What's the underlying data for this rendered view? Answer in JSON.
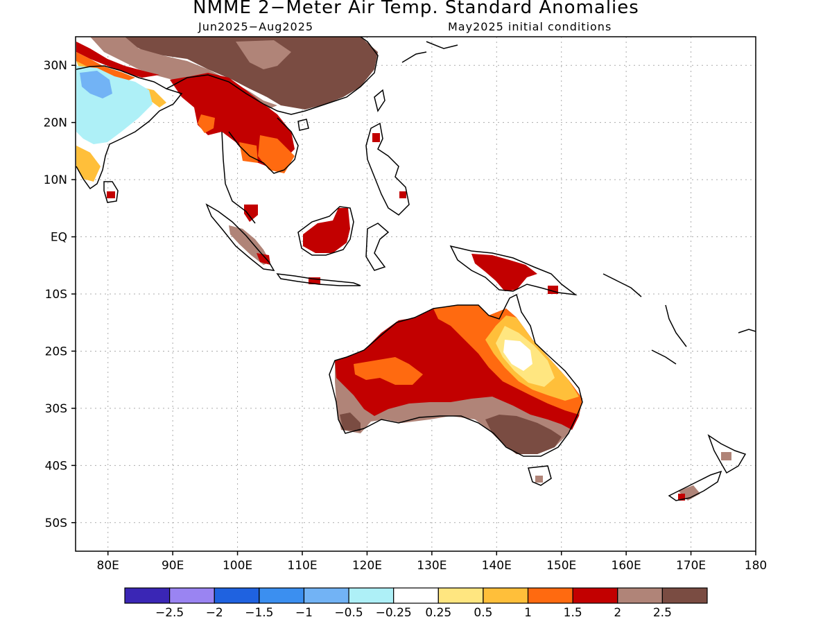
{
  "title": "NMME 2−Meter Air Temp. Standard Anomalies",
  "subtitle_left": "Jun2025−Aug2025",
  "subtitle_right": "May2025 initial conditions",
  "map": {
    "lon_range": [
      75,
      180
    ],
    "lat_range": [
      -55,
      35
    ],
    "lat_labels": [
      {
        "lat": 30,
        "text": "30N"
      },
      {
        "lat": 20,
        "text": "20N"
      },
      {
        "lat": 10,
        "text": "10N"
      },
      {
        "lat": 0,
        "text": "EQ"
      },
      {
        "lat": -10,
        "text": "10S"
      },
      {
        "lat": -20,
        "text": "20S"
      },
      {
        "lat": -30,
        "text": "30S"
      },
      {
        "lat": -40,
        "text": "40S"
      },
      {
        "lat": -50,
        "text": "50S"
      }
    ],
    "lon_labels": [
      {
        "lon": 80,
        "text": "80E"
      },
      {
        "lon": 90,
        "text": "90E"
      },
      {
        "lon": 100,
        "text": "100E"
      },
      {
        "lon": 110,
        "text": "110E"
      },
      {
        "lon": 120,
        "text": "120E"
      },
      {
        "lon": 130,
        "text": "130E"
      },
      {
        "lon": 140,
        "text": "140E"
      },
      {
        "lon": 150,
        "text": "150E"
      },
      {
        "lon": 160,
        "text": "160E"
      },
      {
        "lon": 170,
        "text": "170E"
      },
      {
        "lon": 180,
        "text": "180"
      }
    ],
    "grid": "dotted"
  },
  "colorbar": {
    "colors": [
      "#3a26b5",
      "#9a84f2",
      "#1f62e0",
      "#3b8ff0",
      "#72b3f5",
      "#aef0f7",
      "#ffffff",
      "#ffe680",
      "#ffbf3a",
      "#ff6a10",
      "#c20000",
      "#b08478",
      "#7a4c42"
    ],
    "labels": [
      "−2.5",
      "−2",
      "−1.5",
      "−1",
      "−0.5",
      "−0.25",
      "0.25",
      "0.5",
      "1",
      "1.5",
      "2",
      "2.5"
    ]
  }
}
